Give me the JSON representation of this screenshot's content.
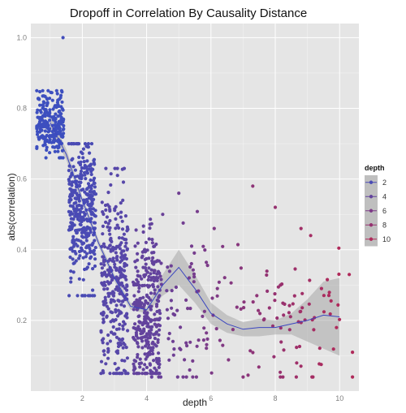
{
  "chart_data": {
    "type": "scatter",
    "title": "Dropoff in Correlation By Causality Distance",
    "xlabel": "depth",
    "ylabel": "abs(correlation)",
    "xlim": [
      0.4,
      10.6
    ],
    "ylim": [
      0.0,
      1.04
    ],
    "x_ticks": [
      2,
      4,
      6,
      8,
      10
    ],
    "y_ticks": [
      0.2,
      0.4,
      0.6,
      0.8,
      1.0
    ],
    "grid": true,
    "legend": {
      "title": "depth",
      "position": "right",
      "entries": [
        "2",
        "4",
        "6",
        "8",
        "10"
      ],
      "entry_values": [
        2,
        4,
        6,
        8,
        10
      ]
    },
    "color_scale": {
      "low": "#3d4fbf",
      "high": "#b02a5a",
      "domain": [
        1,
        10
      ]
    },
    "point_groups": [
      {
        "depth": 1,
        "x_center": 1.0,
        "x_jitter": 0.42,
        "n": 230,
        "y_mean": 0.76,
        "y_spread": 0.045,
        "y_min": 0.66,
        "y_max": 0.85
      },
      {
        "depth": 2,
        "x_center": 2.0,
        "x_jitter": 0.42,
        "n": 360,
        "y_mean": 0.5,
        "y_spread": 0.1,
        "y_min": 0.27,
        "y_max": 0.7
      },
      {
        "depth": 3,
        "x_center": 3.0,
        "x_jitter": 0.42,
        "n": 320,
        "y_mean": 0.3,
        "y_spread": 0.14,
        "y_min": 0.05,
        "y_max": 0.63
      },
      {
        "depth": 4,
        "x_center": 4.0,
        "x_jitter": 0.42,
        "n": 320,
        "y_mean": 0.2,
        "y_spread": 0.12,
        "y_min": 0.05,
        "y_max": 0.55
      },
      {
        "depth": 5,
        "x_center": 5.0,
        "x_jitter": 0.9,
        "n": 30,
        "y_mean": 0.25,
        "y_spread": 0.12,
        "y_min": 0.04,
        "y_max": 0.58
      },
      {
        "depth": 7,
        "x_center": 7.0,
        "x_jitter": 3.0,
        "n": 150,
        "y_mean": 0.19,
        "y_spread": 0.1,
        "y_min": 0.04,
        "y_max": 0.58
      }
    ],
    "outliers": [
      {
        "x": 1.4,
        "y": 1.0
      },
      {
        "x": 7.3,
        "y": 0.58
      },
      {
        "x": 8.0,
        "y": 0.52
      },
      {
        "x": 8.8,
        "y": 0.46
      },
      {
        "x": 9.1,
        "y": 0.44
      },
      {
        "x": 10.4,
        "y": 0.11
      },
      {
        "x": 10.4,
        "y": 0.04
      },
      {
        "x": 5.0,
        "y": 0.56
      },
      {
        "x": 6.1,
        "y": 0.46
      },
      {
        "x": 4.5,
        "y": 0.5
      },
      {
        "x": 5.4,
        "y": 0.41
      },
      {
        "x": 10.3,
        "y": 0.33
      }
    ],
    "smooth_line": {
      "color": "#3a45c0",
      "x": [
        1.0,
        1.5,
        2.0,
        2.5,
        3.0,
        3.5,
        4.0,
        4.5,
        5.0,
        5.5,
        6.0,
        6.5,
        7.0,
        7.5,
        8.0,
        8.5,
        9.0,
        9.5,
        10.0
      ],
      "y": [
        0.76,
        0.67,
        0.54,
        0.42,
        0.32,
        0.24,
        0.23,
        0.3,
        0.35,
        0.29,
        0.22,
        0.19,
        0.175,
        0.18,
        0.18,
        0.19,
        0.2,
        0.215,
        0.21
      ]
    },
    "confidence_band": {
      "color": "#999999",
      "x": [
        1.0,
        1.5,
        2.0,
        2.5,
        3.0,
        3.5,
        4.0,
        4.5,
        5.0,
        5.5,
        6.0,
        6.5,
        7.0,
        7.5,
        8.0,
        8.5,
        9.0,
        9.5,
        10.0
      ],
      "lower": [
        0.74,
        0.655,
        0.53,
        0.41,
        0.31,
        0.23,
        0.22,
        0.27,
        0.3,
        0.25,
        0.19,
        0.165,
        0.155,
        0.155,
        0.16,
        0.16,
        0.14,
        0.12,
        0.1
      ],
      "upper": [
        0.78,
        0.685,
        0.55,
        0.43,
        0.33,
        0.25,
        0.24,
        0.33,
        0.4,
        0.33,
        0.25,
        0.215,
        0.195,
        0.205,
        0.2,
        0.22,
        0.26,
        0.31,
        0.32
      ]
    }
  }
}
